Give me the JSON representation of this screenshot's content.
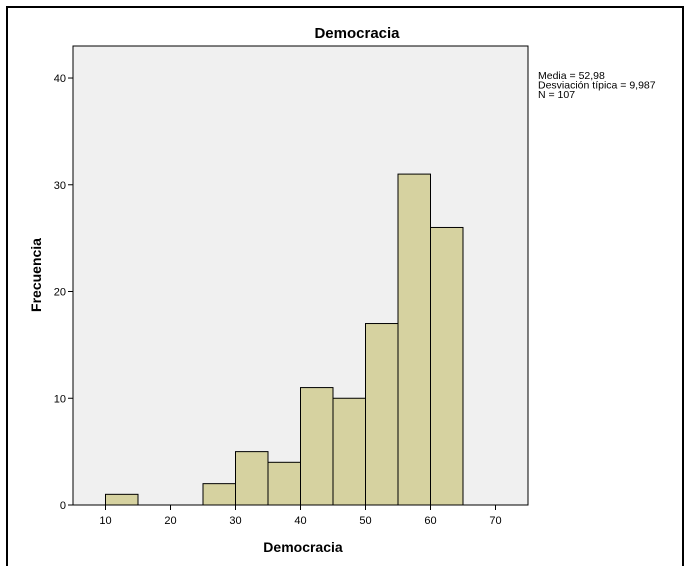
{
  "chart_data": {
    "type": "bar",
    "title": "Democracia",
    "xlabel": "Democracia",
    "ylabel": "Frecuencia",
    "xlim": [
      5,
      75
    ],
    "ylim": [
      0,
      43
    ],
    "xticks": [
      10,
      20,
      30,
      40,
      50,
      60,
      70
    ],
    "yticks": [
      0,
      10,
      20,
      30,
      40
    ],
    "bins": [
      {
        "start": 10,
        "end": 15,
        "count": 1
      },
      {
        "start": 25,
        "end": 30,
        "count": 2
      },
      {
        "start": 30,
        "end": 35,
        "count": 5
      },
      {
        "start": 35,
        "end": 40,
        "count": 4
      },
      {
        "start": 40,
        "end": 45,
        "count": 11
      },
      {
        "start": 45,
        "end": 50,
        "count": 10
      },
      {
        "start": 50,
        "end": 55,
        "count": 17
      },
      {
        "start": 55,
        "end": 60,
        "count": 31
      },
      {
        "start": 60,
        "end": 65,
        "count": 26
      }
    ],
    "stats": [
      "Media = 52,98",
      "Desviación típica = 9,987",
      "N = 107"
    ],
    "colors": {
      "bar": "#d6d2a0",
      "plot_bg": "#f0f0f0",
      "outline": "#000000"
    },
    "grid": false
  }
}
